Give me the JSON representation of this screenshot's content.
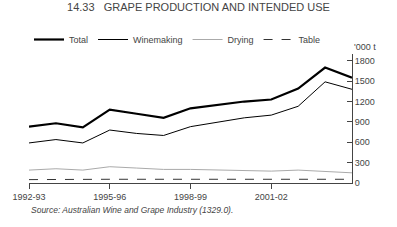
{
  "chart_data": {
    "type": "line",
    "title": "14.33   GRAPE PRODUCTION AND INTENDED USE",
    "ylabel": "'000 t",
    "annotations": [
      "Source: Australian Wine and Grape Industry (1329.0)."
    ],
    "categories": [
      "1992-93",
      null,
      null,
      "1995-96",
      null,
      null,
      "1998-99",
      null,
      null,
      "2001-02",
      null,
      null,
      null
    ],
    "series": [
      {
        "name": "Total",
        "color": "#000000",
        "line_style": "solid",
        "values": [
          830,
          880,
          820,
          1080,
          1020,
          960,
          1100,
          1150,
          1200,
          1230,
          1390,
          1700,
          1550
        ]
      },
      {
        "name": "Winemaking",
        "color": "#000000",
        "line_style": "solid",
        "values": [
          590,
          640,
          590,
          780,
          730,
          700,
          830,
          890,
          960,
          1000,
          1130,
          1490,
          1380
        ]
      },
      {
        "name": "Drying",
        "color": "#aaaaaa",
        "line_style": "solid",
        "values": [
          190,
          210,
          190,
          240,
          220,
          200,
          200,
          195,
          185,
          175,
          190,
          165,
          150
        ]
      },
      {
        "name": "Table",
        "color": "#000000",
        "line_style": "dashed",
        "values": [
          50,
          55,
          50,
          55,
          55,
          55,
          60,
          60,
          58,
          55,
          60,
          55,
          55
        ]
      }
    ],
    "ylim": [
      0,
      1900
    ],
    "yticks": [
      0,
      300,
      600,
      900,
      1200,
      1500,
      1800
    ],
    "grid": false,
    "legend": "upper left"
  }
}
